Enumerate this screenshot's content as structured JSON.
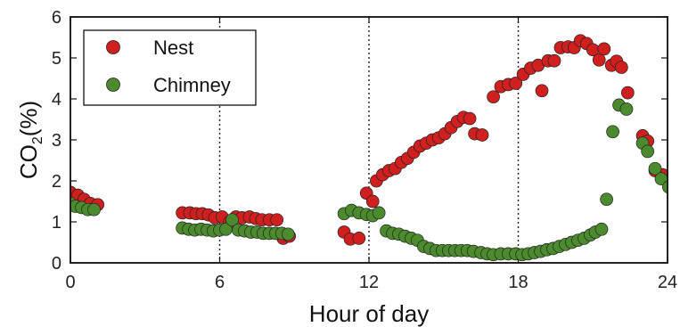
{
  "chart_data": {
    "type": "scatter",
    "title": "",
    "xlabel": "Hour of day",
    "ylabel_main": "CO",
    "ylabel_sub": "2",
    "ylabel_unit": "(%)",
    "xlim": [
      0,
      24
    ],
    "ylim": [
      0,
      6
    ],
    "xticks": [
      "0",
      "6",
      "12",
      "18",
      "24"
    ],
    "yticks": [
      "0",
      "1",
      "2",
      "3",
      "4",
      "5",
      "6"
    ],
    "vlines": [
      6,
      12,
      18
    ],
    "legend_position": "top-left",
    "series": [
      {
        "name": "Nest",
        "color": "#d01f1f",
        "points": [
          [
            0.0,
            1.72
          ],
          [
            0.3,
            1.65
          ],
          [
            0.55,
            1.55
          ],
          [
            0.8,
            1.45
          ],
          [
            1.1,
            1.42
          ],
          [
            4.5,
            1.22
          ],
          [
            4.8,
            1.22
          ],
          [
            5.05,
            1.2
          ],
          [
            5.3,
            1.2
          ],
          [
            5.55,
            1.17
          ],
          [
            5.8,
            1.1
          ],
          [
            6.1,
            1.12
          ],
          [
            6.4,
            1.0
          ],
          [
            6.65,
            1.12
          ],
          [
            6.9,
            1.1
          ],
          [
            7.2,
            1.12
          ],
          [
            7.45,
            1.08
          ],
          [
            7.7,
            1.05
          ],
          [
            8.0,
            1.05
          ],
          [
            8.3,
            1.05
          ],
          [
            8.55,
            0.6
          ],
          [
            8.8,
            0.65
          ],
          [
            11.0,
            0.75
          ],
          [
            11.25,
            0.58
          ],
          [
            11.6,
            0.6
          ],
          [
            11.9,
            1.7
          ],
          [
            12.15,
            1.5
          ],
          [
            12.3,
            2.0
          ],
          [
            12.55,
            2.15
          ],
          [
            12.8,
            2.25
          ],
          [
            13.05,
            2.3
          ],
          [
            13.3,
            2.45
          ],
          [
            13.55,
            2.55
          ],
          [
            13.8,
            2.7
          ],
          [
            14.05,
            2.85
          ],
          [
            14.3,
            2.92
          ],
          [
            14.55,
            3.0
          ],
          [
            14.8,
            3.05
          ],
          [
            15.05,
            3.15
          ],
          [
            15.3,
            3.3
          ],
          [
            15.55,
            3.45
          ],
          [
            15.8,
            3.55
          ],
          [
            16.05,
            3.52
          ],
          [
            16.25,
            3.15
          ],
          [
            16.55,
            3.12
          ],
          [
            17.0,
            4.05
          ],
          [
            17.3,
            4.3
          ],
          [
            17.6,
            4.35
          ],
          [
            17.9,
            4.38
          ],
          [
            18.2,
            4.6
          ],
          [
            18.5,
            4.75
          ],
          [
            18.8,
            4.82
          ],
          [
            18.95,
            4.2
          ],
          [
            19.2,
            4.93
          ],
          [
            19.45,
            4.93
          ],
          [
            19.7,
            5.25
          ],
          [
            20.0,
            5.27
          ],
          [
            20.25,
            5.25
          ],
          [
            20.5,
            5.42
          ],
          [
            20.75,
            5.35
          ],
          [
            21.0,
            5.2
          ],
          [
            21.25,
            4.95
          ],
          [
            21.45,
            5.22
          ],
          [
            21.75,
            4.82
          ],
          [
            21.95,
            4.92
          ],
          [
            22.15,
            4.77
          ],
          [
            22.4,
            4.15
          ],
          [
            23.0,
            3.1
          ],
          [
            23.2,
            2.97
          ],
          [
            23.5,
            2.25
          ],
          [
            23.8,
            2.15
          ],
          [
            24.05,
            1.97
          ],
          [
            24.3,
            1.9
          ],
          [
            24.55,
            1.83
          ],
          [
            24.8,
            1.72
          ]
        ]
      },
      {
        "name": "Chimney",
        "color": "#4c8a2e",
        "points": [
          [
            0.0,
            1.45
          ],
          [
            0.2,
            1.38
          ],
          [
            0.45,
            1.35
          ],
          [
            0.7,
            1.3
          ],
          [
            0.95,
            1.3
          ],
          [
            4.5,
            0.85
          ],
          [
            4.75,
            0.82
          ],
          [
            5.0,
            0.8
          ],
          [
            5.25,
            0.82
          ],
          [
            5.5,
            0.8
          ],
          [
            5.75,
            0.78
          ],
          [
            6.0,
            0.8
          ],
          [
            6.25,
            0.82
          ],
          [
            6.5,
            1.05
          ],
          [
            6.75,
            0.8
          ],
          [
            7.0,
            0.78
          ],
          [
            7.25,
            0.75
          ],
          [
            7.5,
            0.75
          ],
          [
            7.75,
            0.72
          ],
          [
            8.0,
            0.72
          ],
          [
            8.25,
            0.72
          ],
          [
            8.5,
            0.72
          ],
          [
            8.75,
            0.7
          ],
          [
            11.0,
            1.2
          ],
          [
            11.3,
            1.28
          ],
          [
            11.6,
            1.22
          ],
          [
            11.9,
            1.18
          ],
          [
            12.15,
            1.15
          ],
          [
            12.4,
            1.22
          ],
          [
            12.7,
            0.78
          ],
          [
            12.95,
            0.72
          ],
          [
            13.2,
            0.7
          ],
          [
            13.45,
            0.65
          ],
          [
            13.7,
            0.6
          ],
          [
            13.95,
            0.55
          ],
          [
            14.2,
            0.4
          ],
          [
            14.45,
            0.35
          ],
          [
            14.7,
            0.3
          ],
          [
            14.95,
            0.3
          ],
          [
            15.2,
            0.3
          ],
          [
            15.45,
            0.3
          ],
          [
            15.7,
            0.3
          ],
          [
            15.95,
            0.3
          ],
          [
            16.2,
            0.28
          ],
          [
            16.5,
            0.25
          ],
          [
            16.75,
            0.22
          ],
          [
            17.0,
            0.2
          ],
          [
            17.3,
            0.22
          ],
          [
            17.6,
            0.22
          ],
          [
            17.9,
            0.22
          ],
          [
            18.15,
            0.2
          ],
          [
            18.4,
            0.22
          ],
          [
            18.65,
            0.25
          ],
          [
            18.9,
            0.28
          ],
          [
            19.15,
            0.32
          ],
          [
            19.4,
            0.35
          ],
          [
            19.65,
            0.4
          ],
          [
            19.9,
            0.45
          ],
          [
            20.15,
            0.5
          ],
          [
            20.4,
            0.55
          ],
          [
            20.65,
            0.6
          ],
          [
            20.9,
            0.68
          ],
          [
            21.1,
            0.75
          ],
          [
            21.35,
            0.82
          ],
          [
            21.55,
            1.55
          ],
          [
            21.8,
            3.2
          ],
          [
            22.05,
            3.85
          ],
          [
            22.35,
            3.75
          ],
          [
            23.0,
            2.92
          ],
          [
            23.2,
            2.72
          ],
          [
            23.5,
            2.3
          ],
          [
            23.75,
            2.05
          ],
          [
            24.05,
            1.85
          ],
          [
            24.3,
            1.72
          ],
          [
            24.55,
            1.65
          ],
          [
            24.8,
            1.62
          ]
        ]
      }
    ]
  }
}
